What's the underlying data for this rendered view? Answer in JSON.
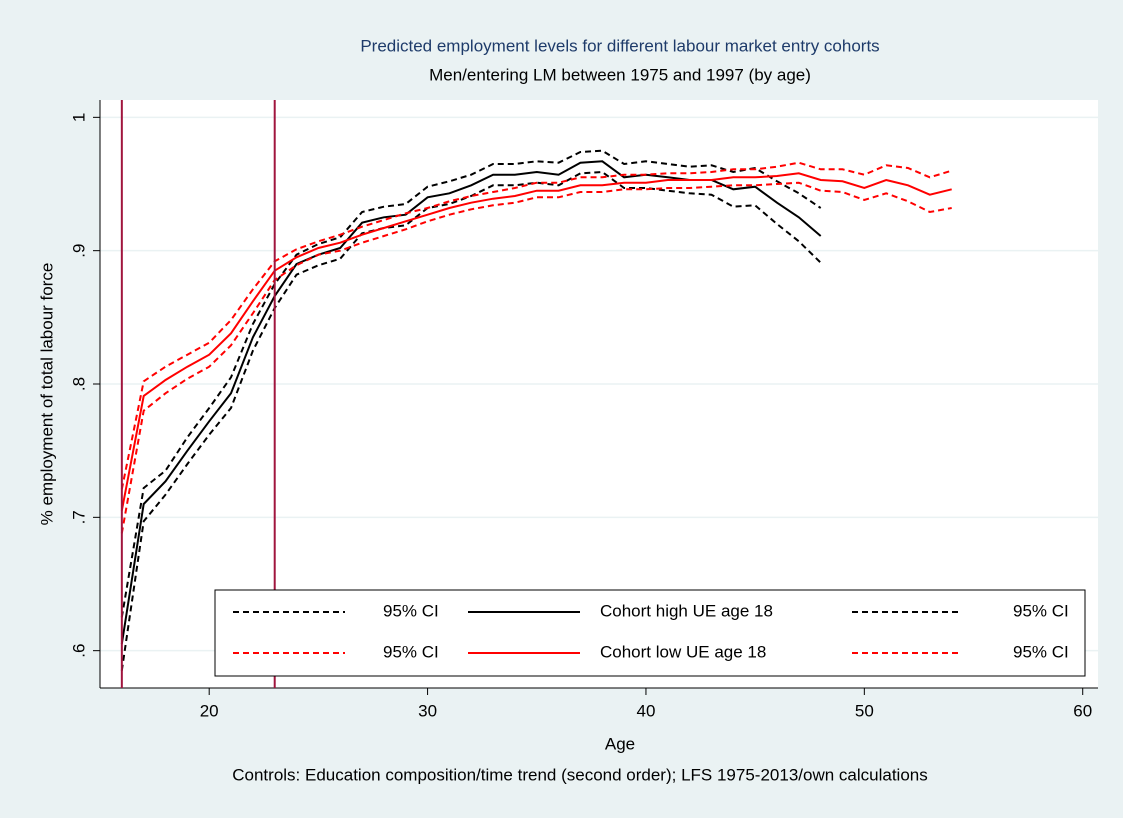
{
  "chart_data": {
    "type": "line",
    "title": "Predicted employment levels for different labour market entry cohorts",
    "subtitle": "Men/entering LM between 1975 and 1997 (by age)",
    "x_label": "Age",
    "y_label": "% employment of total labour force",
    "note": "Controls: Education composition/time trend (second order); LFS 1975-2013/own calculations",
    "xlim": [
      15,
      60.7
    ],
    "xticks": [
      20,
      30,
      40,
      50,
      60
    ],
    "ylim": [
      0.572,
      1.013
    ],
    "yticks": [
      {
        "value": 0.6,
        "label": ".6"
      },
      {
        "value": 0.7,
        "label": ".7"
      },
      {
        "value": 0.8,
        "label": ".8"
      },
      {
        "value": 0.9,
        "label": ".9"
      },
      1
    ],
    "grid": true,
    "xlines": [
      16,
      23
    ],
    "xline_color": "#a0153e",
    "series": [
      {
        "name": "95% CI",
        "color": "#000000",
        "line_style": "dashed",
        "x": [
          16,
          17,
          18,
          19,
          20,
          21,
          22,
          23,
          24,
          25,
          26,
          27,
          28,
          29,
          30,
          31,
          32,
          33,
          34,
          35,
          36,
          37,
          38,
          39,
          40,
          41,
          42,
          43,
          44,
          45,
          46,
          47,
          48
        ],
        "values": [
          0.625,
          0.722,
          0.735,
          0.76,
          0.782,
          0.805,
          0.845,
          0.875,
          0.897,
          0.905,
          0.91,
          0.929,
          0.933,
          0.935,
          0.948,
          0.952,
          0.957,
          0.965,
          0.965,
          0.967,
          0.966,
          0.974,
          0.975,
          0.965,
          0.967,
          0.965,
          0.963,
          0.964,
          0.959,
          0.962,
          0.952,
          0.943,
          0.932
        ]
      },
      {
        "name": "Cohort high UE age 18",
        "color": "#000000",
        "line_style": "solid",
        "x": [
          16,
          17,
          18,
          19,
          20,
          21,
          22,
          23,
          24,
          25,
          26,
          27,
          28,
          29,
          30,
          31,
          32,
          33,
          34,
          35,
          36,
          37,
          38,
          39,
          40,
          41,
          42,
          43,
          44,
          45,
          46,
          47,
          48
        ],
        "values": [
          0.605,
          0.71,
          0.727,
          0.75,
          0.772,
          0.793,
          0.835,
          0.866,
          0.89,
          0.897,
          0.902,
          0.921,
          0.925,
          0.927,
          0.94,
          0.943,
          0.949,
          0.957,
          0.957,
          0.959,
          0.957,
          0.966,
          0.967,
          0.955,
          0.957,
          0.955,
          0.953,
          0.953,
          0.946,
          0.948,
          0.936,
          0.925,
          0.911
        ]
      },
      {
        "name": "95% CI",
        "color": "#000000",
        "line_style": "dashed",
        "x": [
          16,
          17,
          18,
          19,
          20,
          21,
          22,
          23,
          24,
          25,
          26,
          27,
          28,
          29,
          30,
          31,
          32,
          33,
          34,
          35,
          36,
          37,
          38,
          39,
          40,
          41,
          42,
          43,
          44,
          45,
          46,
          47,
          48
        ],
        "values": [
          0.585,
          0.697,
          0.717,
          0.74,
          0.762,
          0.782,
          0.825,
          0.857,
          0.882,
          0.889,
          0.894,
          0.913,
          0.917,
          0.919,
          0.932,
          0.935,
          0.941,
          0.949,
          0.949,
          0.951,
          0.949,
          0.958,
          0.959,
          0.947,
          0.947,
          0.945,
          0.943,
          0.942,
          0.933,
          0.934,
          0.92,
          0.907,
          0.891
        ]
      },
      {
        "name": "95% CI",
        "color": "#ff0000",
        "line_style": "dashed",
        "x": [
          16,
          17,
          18,
          19,
          20,
          21,
          22,
          23,
          24,
          25,
          26,
          27,
          28,
          29,
          30,
          31,
          32,
          33,
          34,
          35,
          36,
          37,
          38,
          39,
          40,
          41,
          42,
          43,
          44,
          45,
          46,
          47,
          48,
          49,
          50,
          51,
          52,
          53,
          54
        ],
        "values": [
          0.721,
          0.802,
          0.813,
          0.822,
          0.831,
          0.848,
          0.871,
          0.892,
          0.901,
          0.907,
          0.912,
          0.918,
          0.923,
          0.928,
          0.932,
          0.937,
          0.941,
          0.944,
          0.947,
          0.951,
          0.951,
          0.955,
          0.955,
          0.957,
          0.957,
          0.958,
          0.958,
          0.959,
          0.961,
          0.961,
          0.963,
          0.966,
          0.961,
          0.961,
          0.957,
          0.964,
          0.962,
          0.955,
          0.96
        ]
      },
      {
        "name": "Cohort low UE age 18",
        "color": "#ff0000",
        "line_style": "solid",
        "x": [
          16,
          17,
          18,
          19,
          20,
          21,
          22,
          23,
          24,
          25,
          26,
          27,
          28,
          29,
          30,
          31,
          32,
          33,
          34,
          35,
          36,
          37,
          38,
          39,
          40,
          41,
          42,
          43,
          44,
          45,
          46,
          47,
          48,
          49,
          50,
          51,
          52,
          53,
          54
        ],
        "values": [
          0.705,
          0.791,
          0.803,
          0.813,
          0.822,
          0.838,
          0.862,
          0.885,
          0.895,
          0.902,
          0.906,
          0.912,
          0.917,
          0.922,
          0.927,
          0.932,
          0.936,
          0.939,
          0.941,
          0.945,
          0.945,
          0.949,
          0.949,
          0.951,
          0.951,
          0.953,
          0.953,
          0.953,
          0.955,
          0.955,
          0.956,
          0.958,
          0.953,
          0.952,
          0.947,
          0.953,
          0.949,
          0.942,
          0.946
        ]
      },
      {
        "name": "95% CI",
        "color": "#ff0000",
        "line_style": "dashed",
        "x": [
          16,
          17,
          18,
          19,
          20,
          21,
          22,
          23,
          24,
          25,
          26,
          27,
          28,
          29,
          30,
          31,
          32,
          33,
          34,
          35,
          36,
          37,
          38,
          39,
          40,
          41,
          42,
          43,
          44,
          45,
          46,
          47,
          48,
          49,
          50,
          51,
          52,
          53,
          54
        ],
        "values": [
          0.688,
          0.78,
          0.793,
          0.804,
          0.813,
          0.829,
          0.853,
          0.878,
          0.889,
          0.897,
          0.9,
          0.906,
          0.911,
          0.916,
          0.922,
          0.927,
          0.931,
          0.934,
          0.936,
          0.94,
          0.94,
          0.944,
          0.944,
          0.946,
          0.946,
          0.947,
          0.947,
          0.948,
          0.949,
          0.949,
          0.95,
          0.951,
          0.945,
          0.944,
          0.938,
          0.943,
          0.937,
          0.929,
          0.932
        ]
      }
    ]
  }
}
